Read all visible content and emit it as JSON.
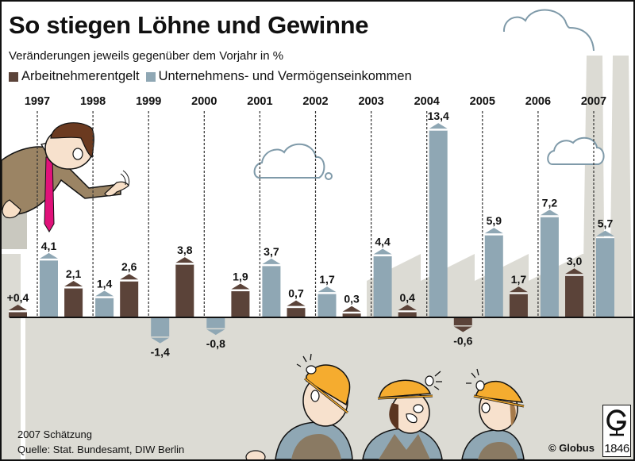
{
  "title": "So stiegen Löhne und Gewinne",
  "subtitle": "Veränderungen jeweils gegenüber dem Vorjahr in %",
  "colors": {
    "arbeitnehmer": "#5b4339",
    "unternehmen": "#8fa7b4",
    "ground": "#dcdbd4",
    "factory": "#dcdbd4",
    "cloud": "#7f9aa9"
  },
  "chart_data": {
    "type": "bar",
    "title": "So stiegen Löhne und Gewinne",
    "subtitle": "Veränderungen jeweils gegenüber dem Vorjahr in %",
    "xlabel": "",
    "ylabel": "",
    "ylim": [
      -1.4,
      13.4
    ],
    "grid": false,
    "legend": "top-left",
    "categories": [
      "1997",
      "1998",
      "1999",
      "2000",
      "2001",
      "2002",
      "2003",
      "2004",
      "2005",
      "2006",
      "2007"
    ],
    "series": [
      {
        "name": "Arbeitnehmerentgelt",
        "color": "#5b4339",
        "values": [
          0.4,
          2.1,
          2.6,
          3.8,
          1.9,
          0.7,
          0.3,
          0.4,
          -0.6,
          1.7,
          3.0
        ],
        "labels": [
          "+0,4",
          "2,1",
          "2,6",
          "3,8",
          "1,9",
          "0,7",
          "0,3",
          "0,4",
          "-0,6",
          "1,7",
          "3,0"
        ]
      },
      {
        "name": "Unternehmens- und Vermögenseinkommen",
        "color": "#8fa7b4",
        "values": [
          4.1,
          1.4,
          -1.4,
          -0.8,
          3.7,
          1.7,
          4.4,
          13.4,
          5.9,
          7.2,
          5.7
        ],
        "labels": [
          "4,1",
          "1,4",
          "-1,4",
          "-0,8",
          "3,7",
          "1,7",
          "4,4",
          "13,4",
          "5,9",
          "7,2",
          "5,7"
        ]
      }
    ]
  },
  "footer": {
    "note": "2007 Schätzung",
    "source": "Quelle: Stat. Bundesamt, DIW Berlin",
    "copyright": "© Globus",
    "logo_letter": "G",
    "logo_year": "1846"
  }
}
